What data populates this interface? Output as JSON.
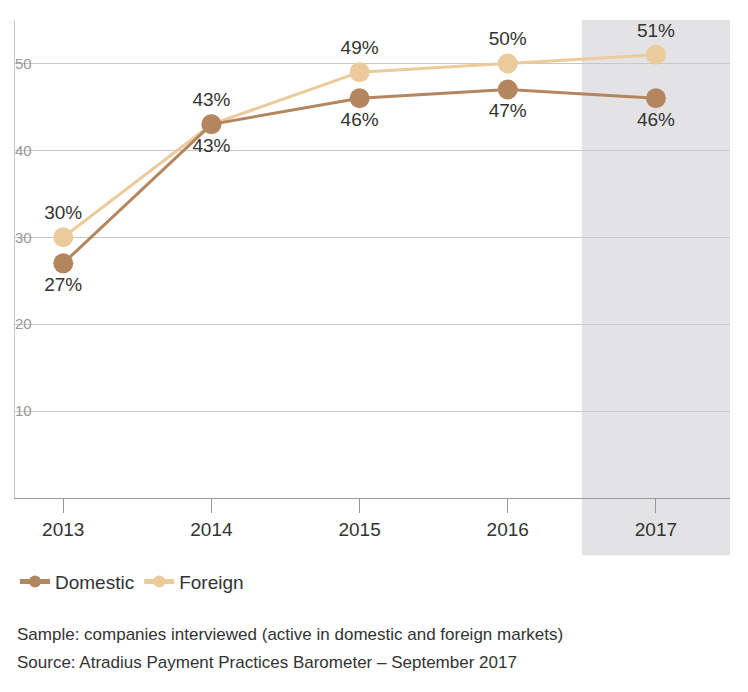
{
  "chart_data": {
    "type": "line",
    "categories": [
      "2013",
      "2014",
      "2015",
      "2016",
      "2017"
    ],
    "series": [
      {
        "name": "Domestic",
        "color": "#b38660",
        "values": [
          27,
          43,
          46,
          47,
          46
        ],
        "value_labels": [
          "27%",
          "43%",
          "46%",
          "47%",
          "46%"
        ]
      },
      {
        "name": "Foreign",
        "color": "#ebcb9b",
        "values": [
          30,
          43,
          49,
          50,
          51
        ],
        "value_labels": [
          "30%",
          "43%",
          "49%",
          "50%",
          "51%"
        ]
      }
    ],
    "ylim": [
      0,
      55
    ],
    "yticks": [
      10,
      20,
      30,
      40,
      50
    ],
    "grid": true,
    "legend": "bottom left",
    "data_labels": true,
    "marker": "circle",
    "annotations": [
      "Sample: companies interviewed (active in domestic and foreign markets)",
      "Source: Atradius Payment Practices Barometer – September 2017"
    ]
  }
}
